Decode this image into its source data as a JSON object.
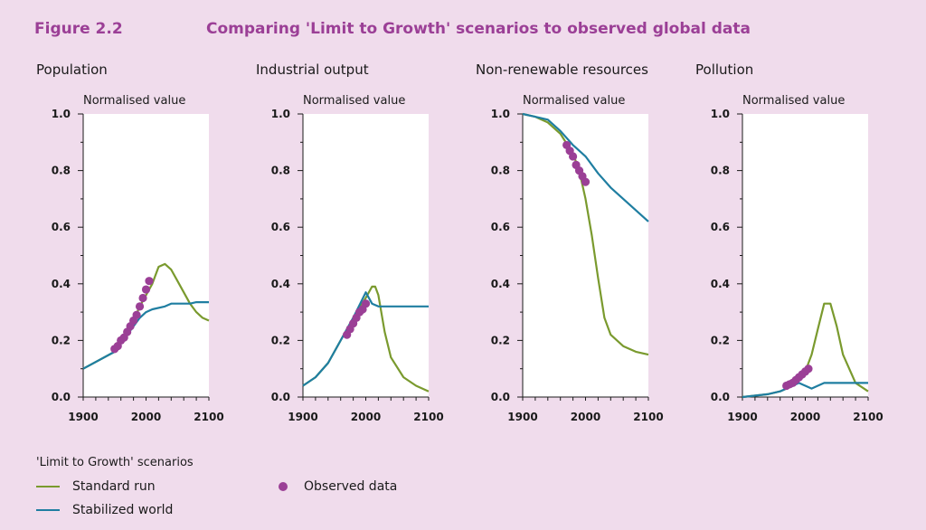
{
  "figure": {
    "label": "Figure 2.2",
    "title": "Comparing 'Limit to Growth' scenarios to observed global data"
  },
  "colors": {
    "standard": "#7a9a2e",
    "stabilized": "#1f7ea1",
    "observed": "#9b3f96"
  },
  "legend": {
    "heading": "'Limit to Growth' scenarios",
    "standard_label": "Standard run",
    "stabilized_label": "Stabilized world",
    "observed_label": "Observed data"
  },
  "chart_data": [
    {
      "type": "line",
      "title": "Population",
      "ylabel": "Normalised value",
      "xlim": [
        1900,
        2100
      ],
      "ylim": [
        0,
        1
      ],
      "xticks": [
        "1900",
        "2000",
        "2100"
      ],
      "yticks": [
        "0.0",
        "0.2",
        "0.4",
        "0.6",
        "0.8",
        "1.0"
      ],
      "series": [
        {
          "name": "Standard run",
          "x": [
            1900,
            1950,
            1970,
            1990,
            2010,
            2020,
            2030,
            2040,
            2050,
            2060,
            2070,
            2080,
            2090,
            2100
          ],
          "y": [
            0.1,
            0.16,
            0.22,
            0.32,
            0.4,
            0.46,
            0.47,
            0.45,
            0.41,
            0.37,
            0.33,
            0.3,
            0.28,
            0.27
          ]
        },
        {
          "name": "Stabilized world",
          "x": [
            1900,
            1950,
            1970,
            1990,
            2000,
            2010,
            2030,
            2040,
            2050,
            2060,
            2070,
            2080,
            2100
          ],
          "y": [
            0.1,
            0.16,
            0.22,
            0.28,
            0.3,
            0.31,
            0.32,
            0.33,
            0.33,
            0.33,
            0.33,
            0.335,
            0.335
          ]
        },
        {
          "name": "Observed data",
          "x": [
            1950,
            1955,
            1960,
            1965,
            1970,
            1975,
            1980,
            1985,
            1990,
            1995,
            2000,
            2005
          ],
          "y": [
            0.17,
            0.18,
            0.2,
            0.21,
            0.23,
            0.25,
            0.27,
            0.29,
            0.32,
            0.35,
            0.38,
            0.41
          ]
        }
      ]
    },
    {
      "type": "line",
      "title": "Industrial output",
      "ylabel": "Normalised value",
      "xlim": [
        1900,
        2100
      ],
      "ylim": [
        0,
        1
      ],
      "xticks": [
        "1900",
        "2000",
        "2100"
      ],
      "yticks": [
        "0.0",
        "0.2",
        "0.4",
        "0.6",
        "0.8",
        "1.0"
      ],
      "series": [
        {
          "name": "Standard run",
          "x": [
            1900,
            1920,
            1940,
            1960,
            1980,
            2000,
            2010,
            2015,
            2020,
            2030,
            2040,
            2060,
            2080,
            2100
          ],
          "y": [
            0.04,
            0.07,
            0.12,
            0.2,
            0.28,
            0.35,
            0.39,
            0.39,
            0.36,
            0.23,
            0.14,
            0.07,
            0.04,
            0.02
          ]
        },
        {
          "name": "Stabilized world",
          "x": [
            1900,
            1920,
            1940,
            1960,
            1980,
            2000,
            2010,
            2020,
            2040,
            2060,
            2080,
            2100
          ],
          "y": [
            0.04,
            0.07,
            0.12,
            0.2,
            0.28,
            0.37,
            0.33,
            0.32,
            0.32,
            0.32,
            0.32,
            0.32
          ]
        },
        {
          "name": "Observed data",
          "x": [
            1970,
            1975,
            1980,
            1985,
            1990,
            1995,
            2000
          ],
          "y": [
            0.22,
            0.24,
            0.26,
            0.28,
            0.3,
            0.31,
            0.33
          ]
        }
      ]
    },
    {
      "type": "line",
      "title": "Non-renewable resources",
      "ylabel": "Normalised value",
      "xlim": [
        1900,
        2100
      ],
      "ylim": [
        0,
        1
      ],
      "xticks": [
        "1900",
        "2000",
        "2100"
      ],
      "yticks": [
        "0.0",
        "0.2",
        "0.4",
        "0.6",
        "0.8",
        "1.0"
      ],
      "series": [
        {
          "name": "Standard run",
          "x": [
            1900,
            1920,
            1940,
            1960,
            1980,
            1990,
            2000,
            2010,
            2020,
            2030,
            2040,
            2060,
            2080,
            2100
          ],
          "y": [
            1.0,
            0.99,
            0.97,
            0.93,
            0.86,
            0.8,
            0.7,
            0.57,
            0.42,
            0.28,
            0.22,
            0.18,
            0.16,
            0.15
          ]
        },
        {
          "name": "Stabilized world",
          "x": [
            1900,
            1920,
            1940,
            1960,
            1980,
            2000,
            2020,
            2040,
            2060,
            2080,
            2100
          ],
          "y": [
            1.0,
            0.99,
            0.98,
            0.94,
            0.89,
            0.85,
            0.79,
            0.74,
            0.7,
            0.66,
            0.62
          ]
        },
        {
          "name": "Observed data",
          "x": [
            1970,
            1975,
            1980,
            1985,
            1990,
            1995,
            2000
          ],
          "y": [
            0.89,
            0.87,
            0.85,
            0.82,
            0.8,
            0.78,
            0.76
          ]
        }
      ]
    },
    {
      "type": "line",
      "title": "Pollution",
      "ylabel": "Normalised value",
      "xlim": [
        1900,
        2100
      ],
      "ylim": [
        0,
        1
      ],
      "xticks": [
        "1900",
        "2000",
        "2100"
      ],
      "yticks": [
        "0.0",
        "0.2",
        "0.4",
        "0.6",
        "0.8",
        "1.0"
      ],
      "series": [
        {
          "name": "Standard run",
          "x": [
            1900,
            1940,
            1960,
            1980,
            2000,
            2010,
            2020,
            2030,
            2040,
            2050,
            2060,
            2080,
            2100
          ],
          "y": [
            0.0,
            0.01,
            0.02,
            0.04,
            0.09,
            0.15,
            0.24,
            0.33,
            0.33,
            0.25,
            0.15,
            0.05,
            0.02
          ]
        },
        {
          "name": "Stabilized world",
          "x": [
            1900,
            1940,
            1960,
            1980,
            1990,
            2000,
            2010,
            2020,
            2030,
            2040,
            2060,
            2080,
            2100
          ],
          "y": [
            0.0,
            0.01,
            0.02,
            0.04,
            0.05,
            0.04,
            0.03,
            0.04,
            0.05,
            0.05,
            0.05,
            0.05,
            0.05
          ]
        },
        {
          "name": "Observed data",
          "x": [
            1970,
            1975,
            1980,
            1985,
            1990,
            1995,
            2000,
            2005
          ],
          "y": [
            0.04,
            0.045,
            0.05,
            0.06,
            0.07,
            0.08,
            0.09,
            0.1
          ]
        }
      ]
    }
  ]
}
